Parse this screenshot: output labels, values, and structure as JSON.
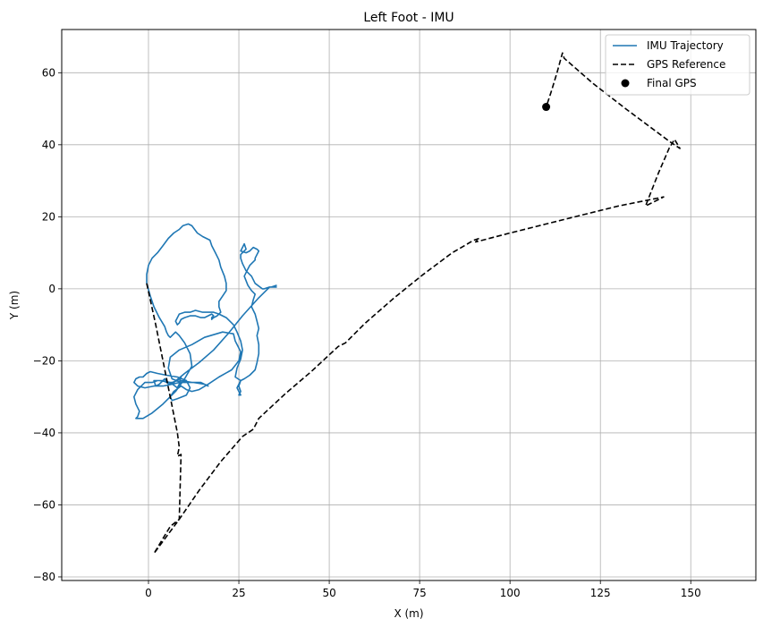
{
  "chart_data": {
    "type": "line",
    "title": "Left Foot - IMU",
    "xlabel": "X (m)",
    "ylabel": "Y (m)",
    "xlim": [
      -24,
      168
    ],
    "ylim": [
      -81,
      72
    ],
    "xticks": [
      0,
      25,
      50,
      75,
      100,
      125,
      150
    ],
    "yticks": [
      -80,
      -60,
      -40,
      -20,
      0,
      20,
      40,
      60
    ],
    "grid": true,
    "legend_position": "top-right",
    "series": [
      {
        "name": "IMU Trajectory",
        "type": "line",
        "style": "solid",
        "color": "#1f77b4",
        "x": [
          35.5,
          33.5,
          33.0,
          30.5,
          26.0,
          22.0,
          18.0,
          14.0,
          10.0,
          7.0,
          5.5,
          4.5,
          3.0,
          2.0,
          1.5,
          3.0,
          6.0,
          8.0,
          9.0,
          12.0,
          14.5,
          16.5,
          15.5,
          12.5,
          9.0,
          6.5,
          5.5,
          6.0,
          8.5,
          12.0,
          15.5,
          20.5,
          23.5,
          24.0,
          25.5,
          25.0,
          23.0,
          19.5,
          16.5,
          14.0,
          12.0,
          10.5,
          9.0,
          7.0,
          6.0,
          6.5,
          8.0,
          10.5,
          11.5,
          10.5,
          8.0,
          5.0,
          2.5,
          0.5,
          -0.5,
          -1.5,
          -2.5,
          -3.5,
          -4.0,
          -3.0,
          -1.0,
          1.5,
          4.0,
          6.5,
          8.5,
          9.0,
          8.0,
          6.5,
          5.0,
          4.0,
          2.5,
          1.0,
          -1.0,
          -3.0,
          -4.0,
          -3.5,
          -2.5,
          -3.0,
          -3.5,
          -1.5,
          1.0,
          4.0,
          7.5,
          10.0,
          12.0,
          11.5,
          10.0,
          8.5,
          7.5,
          7.0,
          6.5,
          6.0,
          5.5,
          5.0,
          4.5,
          3.0,
          1.5,
          0.5,
          -0.5,
          -0.5,
          0.0,
          0.5,
          1.0,
          1.5,
          2.5,
          4.0,
          5.5,
          7.0,
          8.5,
          9.5,
          11.0,
          12.0,
          13.5,
          15.0,
          17.0,
          17.5,
          18.5,
          19.5,
          20.0,
          21.0,
          21.5,
          21.5,
          20.5,
          19.5,
          19.5,
          20.0,
          19.0,
          18.0,
          17.5,
          17.5,
          18.0,
          17.5,
          16.5,
          15.5,
          14.5,
          13.0,
          11.5,
          10.0,
          9.0,
          8.5,
          8.0,
          7.5,
          8.5,
          10.0,
          11.5,
          13.0,
          15.0,
          16.5,
          18.0,
          19.5,
          21.5,
          23.5,
          24.5,
          25.5,
          26.0,
          25.5,
          24.5,
          24.0,
          25.5,
          25.0,
          25.5,
          25.0,
          25.5,
          25.0,
          24.5,
          25.0,
          25.5,
          26.5,
          28.0,
          29.5,
          30.0,
          30.5,
          30.5,
          30.0,
          30.5,
          30.0,
          29.5,
          28.5,
          29.0,
          29.5,
          28.5,
          27.5,
          26.5,
          27.5,
          28.0,
          29.5,
          29.5,
          30.5,
          30.0,
          29.0,
          28.0,
          27.0,
          25.5,
          26.5,
          27.0,
          26.0,
          25.5,
          25.5,
          26.0,
          27.0,
          28.5,
          29.5,
          31.5,
          32.0,
          33.5,
          34.0,
          35.5
        ],
        "y": [
          0.5,
          0.5,
          0.0,
          -2.5,
          -7.5,
          -12.5,
          -17.0,
          -20.5,
          -23.5,
          -26.0,
          -26.5,
          -25.0,
          -26.5,
          -27.0,
          -25.5,
          -25.5,
          -26.0,
          -27.5,
          -25.5,
          -26.0,
          -26.0,
          -27.0,
          -26.5,
          -26.0,
          -26.0,
          -25.0,
          -22.0,
          -19.0,
          -17.0,
          -15.5,
          -13.5,
          -12.0,
          -12.5,
          -14.5,
          -17.5,
          -20.0,
          -22.5,
          -24.5,
          -26.5,
          -28.0,
          -28.5,
          -28.0,
          -27.0,
          -28.5,
          -30.0,
          -31.0,
          -30.5,
          -29.5,
          -27.5,
          -25.5,
          -24.5,
          -24.0,
          -23.5,
          -23.0,
          -23.5,
          -24.5,
          -24.5,
          -25.0,
          -26.0,
          -27.0,
          -27.5,
          -27.0,
          -27.0,
          -26.5,
          -26.0,
          -24.5,
          -25.5,
          -26.0,
          -26.0,
          -25.5,
          -25.5,
          -26.0,
          -26.0,
          -28.0,
          -30.0,
          -32.0,
          -34.0,
          -35.5,
          -36.0,
          -36.0,
          -34.5,
          -32.0,
          -28.5,
          -25.0,
          -21.5,
          -18.0,
          -15.0,
          -13.0,
          -12.0,
          -12.5,
          -13.0,
          -13.5,
          -13.0,
          -12.0,
          -10.5,
          -8.0,
          -5.0,
          -2.0,
          1.5,
          4.0,
          6.5,
          7.5,
          8.5,
          9.0,
          10.0,
          12.0,
          14.0,
          15.5,
          16.5,
          17.5,
          18.0,
          17.5,
          15.5,
          14.5,
          13.5,
          12.0,
          10.0,
          8.0,
          6.0,
          3.5,
          1.5,
          -0.5,
          -2.0,
          -3.5,
          -5.0,
          -6.5,
          -7.5,
          -8.0,
          -8.5,
          -8.0,
          -7.5,
          -7.0,
          -7.5,
          -8.0,
          -8.0,
          -7.5,
          -7.5,
          -8.0,
          -8.5,
          -9.5,
          -10.0,
          -9.0,
          -7.0,
          -6.5,
          -6.5,
          -6.0,
          -6.5,
          -6.5,
          -6.5,
          -7.0,
          -8.0,
          -10.0,
          -12.0,
          -14.5,
          -17.0,
          -19.5,
          -22.0,
          -24.5,
          -25.5,
          -27.0,
          -28.5,
          -29.5,
          -29.5,
          -28.5,
          -27.5,
          -26.5,
          -25.5,
          -25.0,
          -24.0,
          -22.5,
          -20.5,
          -18.0,
          -15.5,
          -13.0,
          -11.0,
          -9.0,
          -7.0,
          -5.0,
          -3.0,
          -1.5,
          -0.5,
          1.0,
          3.5,
          5.5,
          6.5,
          8.0,
          8.5,
          10.5,
          11.0,
          11.5,
          10.5,
          10.0,
          10.5,
          12.5,
          11.0,
          10.0,
          9.5,
          8.5,
          7.0,
          5.0,
          3.5,
          1.5,
          0.0,
          0.0,
          0.5,
          0.5,
          1.0
        ]
      },
      {
        "name": "GPS Reference",
        "type": "line",
        "style": "dashed",
        "color": "#000000",
        "x": [
          -0.5,
          2.0,
          4.0,
          6.0,
          8.0,
          8.5,
          8.0,
          9.0,
          8.5,
          6.0,
          1.5,
          8.5,
          14.0,
          20.0,
          26.0,
          29.0,
          30.5,
          38.0,
          45.0,
          52.5,
          54.5,
          60.0,
          68.0,
          76.0,
          84.0,
          90.0,
          91.5,
          90.5,
          100.0,
          110.0,
          120.0,
          130.0,
          142.5,
          137.5,
          141.0,
          144.0,
          145.5,
          147.0,
          144.0,
          132.0,
          123.0,
          115.0,
          114.5,
          113.0,
          111.5,
          110.0
        ],
        "y": [
          1.5,
          -10.0,
          -20.0,
          -30.0,
          -40.0,
          -44.0,
          -46.5,
          -46.0,
          -64.0,
          -66.0,
          -73.5,
          -64.0,
          -56.0,
          -48.0,
          -41.0,
          -39.0,
          -36.0,
          -29.0,
          -23.0,
          -16.0,
          -15.0,
          -9.5,
          -2.5,
          4.0,
          10.0,
          13.5,
          14.0,
          13.0,
          15.5,
          18.0,
          20.5,
          23.0,
          25.5,
          23.0,
          32.0,
          39.0,
          41.5,
          39.0,
          41.0,
          50.0,
          57.0,
          64.0,
          65.5,
          60.0,
          55.0,
          50.5
        ]
      }
    ],
    "markers": [
      {
        "name": "Final GPS",
        "x": 110.0,
        "y": 50.5,
        "color": "#000000"
      }
    ]
  }
}
